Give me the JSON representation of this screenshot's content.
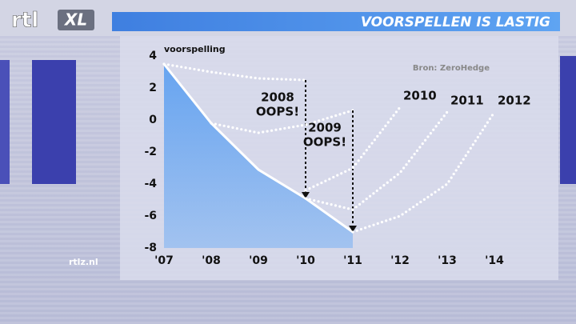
{
  "header": {
    "logo": "rtl",
    "logo_badge": "XL",
    "title": "VOORSPELLEN IS LASTIG"
  },
  "footer": {
    "site": "rtlz.nl"
  },
  "chart_data": {
    "type": "line",
    "y_label": "voorspelling",
    "source": "Bron: ZeroHedge",
    "categories": [
      "'07",
      "'08",
      "'09",
      "'10",
      "'11",
      "'12",
      "'13",
      "'14"
    ],
    "ylim": [
      -8,
      4
    ],
    "yticks": [
      4,
      2,
      0,
      -2,
      -4,
      -6,
      -8
    ],
    "series": [
      {
        "color": "#ffffff",
        "values": [
          3.5,
          -0.2,
          -3.1,
          -4.9,
          -7.0,
          null,
          null,
          null
        ]
      },
      {
        "name": "2008",
        "callout": "OOPS!",
        "color": "#ffffff",
        "values": [
          3.5,
          3.0,
          2.6,
          2.5,
          null,
          null,
          null,
          null
        ]
      },
      {
        "name": "2009",
        "callout": "OOPS!",
        "color": "#ffffff",
        "values": [
          null,
          -0.2,
          -0.8,
          -0.3,
          0.6,
          null,
          null,
          null
        ]
      },
      {
        "name": "2010",
        "color": "#ffffff",
        "values": [
          null,
          null,
          null,
          -4.4,
          -3.0,
          0.8,
          null,
          null
        ]
      },
      {
        "name": "2011",
        "color": "#ffffff",
        "values": [
          null,
          null,
          null,
          -4.9,
          -5.6,
          -3.3,
          0.5,
          null
        ]
      },
      {
        "name": "2012",
        "color": "#ffffff",
        "values": [
          null,
          null,
          null,
          null,
          -7.0,
          -6.0,
          -4.0,
          0.5
        ]
      }
    ]
  }
}
